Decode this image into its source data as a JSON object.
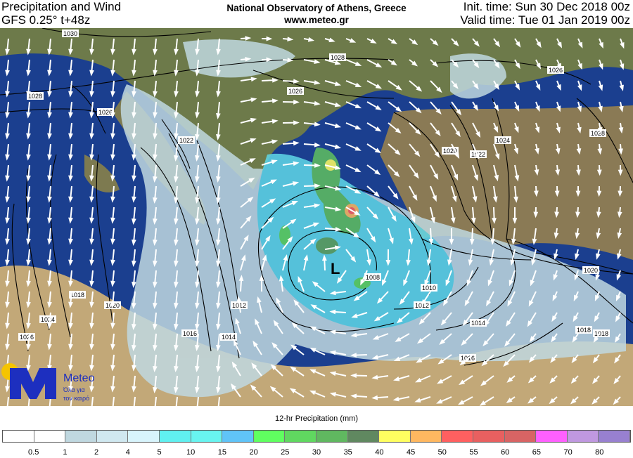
{
  "header": {
    "product": "Precipitation and Wind",
    "model": "GFS 0.25° t+48z",
    "org": "National Observatory of Athens, Greece",
    "url": "www.meteo.gr",
    "init_time": "Init. time: Sun 30 Dec 2018 00z",
    "valid_time": "Valid time: Tue 01 Jan 2019 00z"
  },
  "map": {
    "low_marker": "L",
    "isobar_labels": [
      "1030",
      "1028",
      "1028",
      "1026",
      "1026",
      "1026",
      "1028",
      "1024",
      "1022",
      "1020",
      "1020",
      "1018",
      "1016",
      "1014",
      "1012",
      "1010",
      "1008",
      "1012",
      "1014",
      "1016",
      "1018",
      "1020",
      "1024",
      "1026",
      "1022",
      "1018"
    ],
    "colors": {
      "sea": "#1b3f8f",
      "land": "#8a7a55",
      "desert": "#c2a878",
      "isobar": "#000000",
      "wind": "#ffffff"
    }
  },
  "logo": {
    "name": "Meteo",
    "tagline1": "Όλα για",
    "tagline2": "τον καιρό",
    "colors": {
      "blue": "#1d2fbf",
      "sun": "#f5c400"
    }
  },
  "legend": {
    "title": "12-hr Precipitation (mm)",
    "labels": [
      "0.5",
      "1",
      "2",
      "4",
      "5",
      "10",
      "15",
      "20",
      "25",
      "30",
      "35",
      "40",
      "45",
      "50",
      "55",
      "60",
      "65",
      "70",
      "80"
    ],
    "colors": [
      "#ffffff",
      "#ffffff",
      "#c0d8e0",
      "#d0e8f0",
      "#d8f4fc",
      "#60f0f0",
      "#68f4f0",
      "#60c4f8",
      "#60ff60",
      "#60d860",
      "#60b860",
      "#608860",
      "#ffff60",
      "#ffb860",
      "#ff6060",
      "#e86060",
      "#d86464",
      "#ff60ff",
      "#c098e0",
      "#9880d0"
    ]
  }
}
